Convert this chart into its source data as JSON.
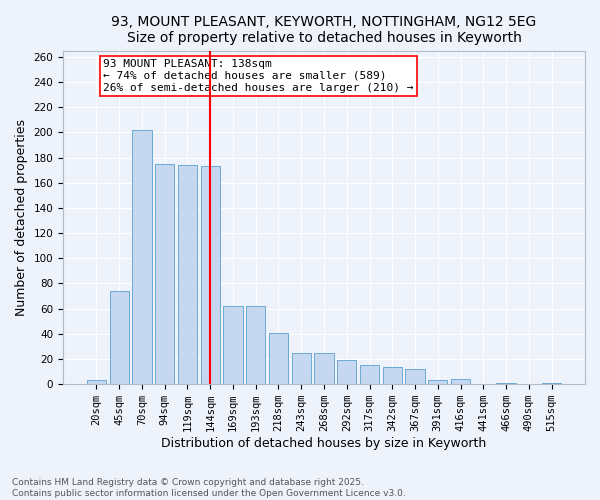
{
  "title": "93, MOUNT PLEASANT, KEYWORTH, NOTTINGHAM, NG12 5EG",
  "subtitle": "Size of property relative to detached houses in Keyworth",
  "xlabel": "Distribution of detached houses by size in Keyworth",
  "ylabel": "Number of detached properties",
  "bar_labels": [
    "20sqm",
    "45sqm",
    "70sqm",
    "94sqm",
    "119sqm",
    "144sqm",
    "169sqm",
    "193sqm",
    "218sqm",
    "243sqm",
    "268sqm",
    "292sqm",
    "317sqm",
    "342sqm",
    "367sqm",
    "391sqm",
    "416sqm",
    "441sqm",
    "466sqm",
    "490sqm",
    "515sqm"
  ],
  "bar_values": [
    3,
    74,
    202,
    175,
    174,
    173,
    62,
    62,
    41,
    25,
    25,
    19,
    15,
    14,
    12,
    3,
    4,
    0,
    1,
    0,
    1
  ],
  "bar_color": "#c5d8f0",
  "bar_edge_color": "#6aaad4",
  "marker_line_index": 5,
  "marker_label": "93 MOUNT PLEASANT: 138sqm",
  "annotation_line1": "← 74% of detached houses are smaller (589)",
  "annotation_line2": "26% of semi-detached houses are larger (210) →",
  "ylim": [
    0,
    265
  ],
  "yticks": [
    0,
    20,
    40,
    60,
    80,
    100,
    120,
    140,
    160,
    180,
    200,
    220,
    240,
    260
  ],
  "footer1": "Contains HM Land Registry data © Crown copyright and database right 2025.",
  "footer2": "Contains public sector information licensed under the Open Government Licence v3.0.",
  "bg_color": "#eef2fb",
  "title_fontsize": 10,
  "axis_label_fontsize": 9,
  "tick_fontsize": 7.5,
  "footer_fontsize": 6.5,
  "annot_fontsize": 8
}
